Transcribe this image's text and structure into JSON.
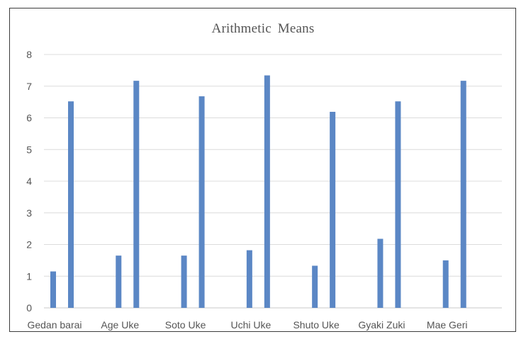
{
  "chart_data": {
    "type": "bar",
    "title": "Arithmetic  Means",
    "xlabel": "",
    "ylabel": "",
    "ylim": [
      0,
      8
    ],
    "yticks": [
      "0",
      "1",
      "2",
      "3",
      "4",
      "5",
      "6",
      "7",
      "8"
    ],
    "grid": true,
    "legend": "none",
    "categories": [
      "Gedan barai",
      "Age Uke",
      "Soto Uke",
      "Uchi Uke",
      "Shuto Uke",
      "Gyaki Zuki",
      "Mae Geri"
    ],
    "series": [
      {
        "values": [
          1.15,
          1.65,
          1.65,
          1.82,
          1.33,
          2.18,
          1.5
        ],
        "color": "#5b87c5"
      },
      {
        "values": [
          6.52,
          7.17,
          6.68,
          7.34,
          6.19,
          6.52,
          7.17
        ],
        "color": "#5b87c5"
      }
    ]
  }
}
